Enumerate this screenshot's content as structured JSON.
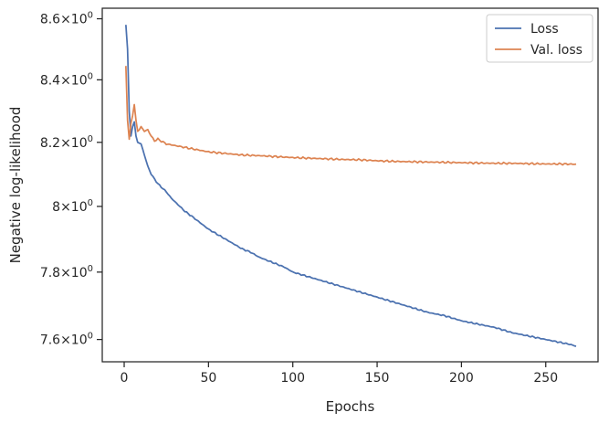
{
  "chart_data": {
    "type": "line",
    "xlabel": "Epochs",
    "ylabel": "Negative log-likelihood",
    "xlim": [
      -13,
      281
    ],
    "ylim": [
      7.535,
      8.635
    ],
    "x_ticks": [
      0,
      50,
      100,
      150,
      200,
      250
    ],
    "x_tick_labels": [
      "0",
      "50",
      "100",
      "150",
      "200",
      "250"
    ],
    "y_ticks": [
      7.6,
      7.8,
      8.0,
      8.2,
      8.4,
      8.6
    ],
    "y_tick_labels": [
      {
        "mantissa": "7.6",
        "base": "10",
        "exp": "0"
      },
      {
        "mantissa": "7.8",
        "base": "10",
        "exp": "0"
      },
      {
        "mantissa": "8",
        "base": "10",
        "exp": "0"
      },
      {
        "mantissa": "8.2",
        "base": "10",
        "exp": "0"
      },
      {
        "mantissa": "8.4",
        "base": "10",
        "exp": "0"
      },
      {
        "mantissa": "8.6",
        "base": "10",
        "exp": "0"
      }
    ],
    "y_scale": "log",
    "grid": false,
    "legend_position": "top-right",
    "series": [
      {
        "name": "Loss",
        "color": "#4c72b0",
        "points": [
          [
            1,
            8.58
          ],
          [
            2,
            8.5
          ],
          [
            3,
            8.3
          ],
          [
            4,
            8.22
          ],
          [
            5,
            8.25
          ],
          [
            6,
            8.265
          ],
          [
            7,
            8.22
          ],
          [
            8,
            8.2
          ],
          [
            10,
            8.195
          ],
          [
            12,
            8.16
          ],
          [
            14,
            8.125
          ],
          [
            16,
            8.1
          ],
          [
            18,
            8.085
          ],
          [
            20,
            8.07
          ],
          [
            22,
            8.06
          ],
          [
            25,
            8.045
          ],
          [
            28,
            8.025
          ],
          [
            30,
            8.015
          ],
          [
            33,
            8.0
          ],
          [
            36,
            7.985
          ],
          [
            40,
            7.97
          ],
          [
            45,
            7.95
          ],
          [
            50,
            7.93
          ],
          [
            55,
            7.915
          ],
          [
            60,
            7.9
          ],
          [
            65,
            7.885
          ],
          [
            70,
            7.87
          ],
          [
            75,
            7.86
          ],
          [
            80,
            7.845
          ],
          [
            85,
            7.835
          ],
          [
            90,
            7.825
          ],
          [
            95,
            7.815
          ],
          [
            100,
            7.8
          ],
          [
            110,
            7.785
          ],
          [
            120,
            7.77
          ],
          [
            130,
            7.755
          ],
          [
            140,
            7.74
          ],
          [
            150,
            7.725
          ],
          [
            160,
            7.71
          ],
          [
            170,
            7.695
          ],
          [
            180,
            7.68
          ],
          [
            190,
            7.67
          ],
          [
            200,
            7.655
          ],
          [
            210,
            7.645
          ],
          [
            220,
            7.635
          ],
          [
            230,
            7.62
          ],
          [
            240,
            7.61
          ],
          [
            250,
            7.6
          ],
          [
            260,
            7.59
          ],
          [
            265,
            7.585
          ],
          [
            268,
            7.58
          ]
        ]
      },
      {
        "name": "Val. loss",
        "color": "#dd8452",
        "points": [
          [
            1,
            8.445
          ],
          [
            2,
            8.27
          ],
          [
            3,
            8.21
          ],
          [
            4,
            8.26
          ],
          [
            5,
            8.285
          ],
          [
            6,
            8.32
          ],
          [
            7,
            8.27
          ],
          [
            8,
            8.235
          ],
          [
            9,
            8.24
          ],
          [
            10,
            8.25
          ],
          [
            12,
            8.235
          ],
          [
            14,
            8.24
          ],
          [
            16,
            8.22
          ],
          [
            18,
            8.205
          ],
          [
            20,
            8.21
          ],
          [
            25,
            8.195
          ],
          [
            30,
            8.19
          ],
          [
            35,
            8.185
          ],
          [
            40,
            8.18
          ],
          [
            45,
            8.175
          ],
          [
            50,
            8.17
          ],
          [
            60,
            8.165
          ],
          [
            70,
            8.16
          ],
          [
            80,
            8.158
          ],
          [
            90,
            8.155
          ],
          [
            100,
            8.152
          ],
          [
            110,
            8.15
          ],
          [
            120,
            8.148
          ],
          [
            130,
            8.146
          ],
          [
            140,
            8.145
          ],
          [
            150,
            8.142
          ],
          [
            160,
            8.14
          ],
          [
            170,
            8.139
          ],
          [
            180,
            8.138
          ],
          [
            190,
            8.137
          ],
          [
            200,
            8.136
          ],
          [
            210,
            8.135
          ],
          [
            220,
            8.134
          ],
          [
            230,
            8.134
          ],
          [
            240,
            8.133
          ],
          [
            250,
            8.132
          ],
          [
            260,
            8.132
          ],
          [
            268,
            8.131
          ]
        ]
      }
    ]
  }
}
